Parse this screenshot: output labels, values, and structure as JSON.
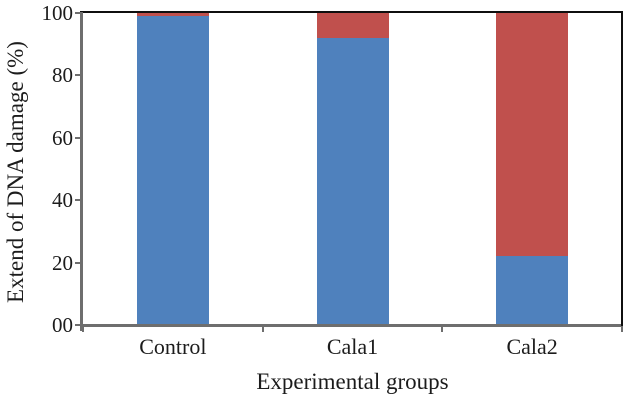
{
  "figure": {
    "background": "#ffffff",
    "text_color": "#1c1c1c",
    "frame": {
      "top_border_color": "#0f0f0f",
      "right_border_color": "#0f0f0f",
      "axis_spine_color": "#6e6e6e"
    }
  },
  "chart_data": {
    "type": "bar",
    "variant": "stacked-column",
    "title": "",
    "xlabel": "Experimental groups",
    "ylabel": "Extend of DNA damage (%)",
    "categories": [
      "Control",
      "Cala1",
      "Cala2"
    ],
    "series": [
      {
        "name": "blue-segment",
        "color": "#4f81bd",
        "values": [
          99,
          92,
          22
        ]
      },
      {
        "name": "red-segment",
        "color": "#c0504d",
        "values": [
          1,
          8,
          78
        ]
      }
    ],
    "ylim": [
      0,
      100
    ],
    "yticks": {
      "values": [
        0,
        20,
        40,
        60,
        80,
        100
      ],
      "labels": [
        "00",
        "20",
        "40",
        "60",
        "80",
        "100"
      ]
    },
    "grid": false,
    "legend_visible": false
  }
}
